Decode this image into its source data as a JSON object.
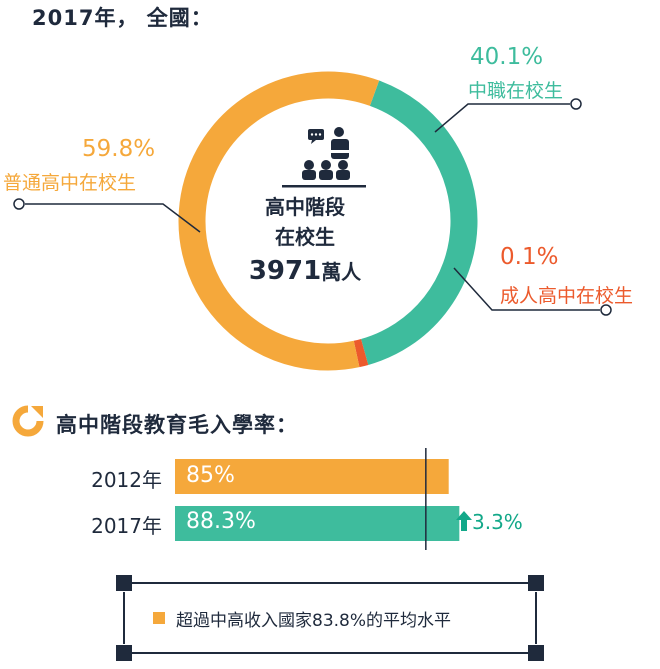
{
  "heading": "2017年， 全國：",
  "colors": {
    "orange": "#f5a83b",
    "teal": "#3ebc9d",
    "red": "#ec5a2c",
    "dark": "#1f2a3c",
    "green_text": "#13a889"
  },
  "chart_data": [
    {
      "type": "pie",
      "donut": true,
      "slices": [
        {
          "label": "中職在校生",
          "pct_text": "40.1%",
          "value": 40.1,
          "color": "#3ebc9d"
        },
        {
          "label": "成人高中在校生",
          "pct_text": "0.1%",
          "value": 0.1,
          "color": "#ec5a2c"
        },
        {
          "label": "普通高中在校生",
          "pct_text": "59.8%",
          "value": 59.8,
          "color": "#f5a83b"
        }
      ],
      "center": {
        "line1": "高中階段",
        "line2": "在校生",
        "total": "3971",
        "unit": "萬人",
        "icon": "classroom-icon"
      }
    },
    {
      "type": "bar",
      "title": "高中階段教育毛入學率：",
      "title_icon": "donut-icon",
      "categories": [
        "2012年",
        "2017年"
      ],
      "values": [
        85,
        88.3
      ],
      "value_labels": [
        "85%",
        "88.3%"
      ],
      "colors": [
        "#f5a83b",
        "#3ebc9d"
      ],
      "reference_value": 83.8,
      "change": {
        "text": "3.3%",
        "direction": "up",
        "icon": "up-arrow-icon"
      },
      "note": "超過中高收入國家83.8%的平均水平"
    }
  ]
}
